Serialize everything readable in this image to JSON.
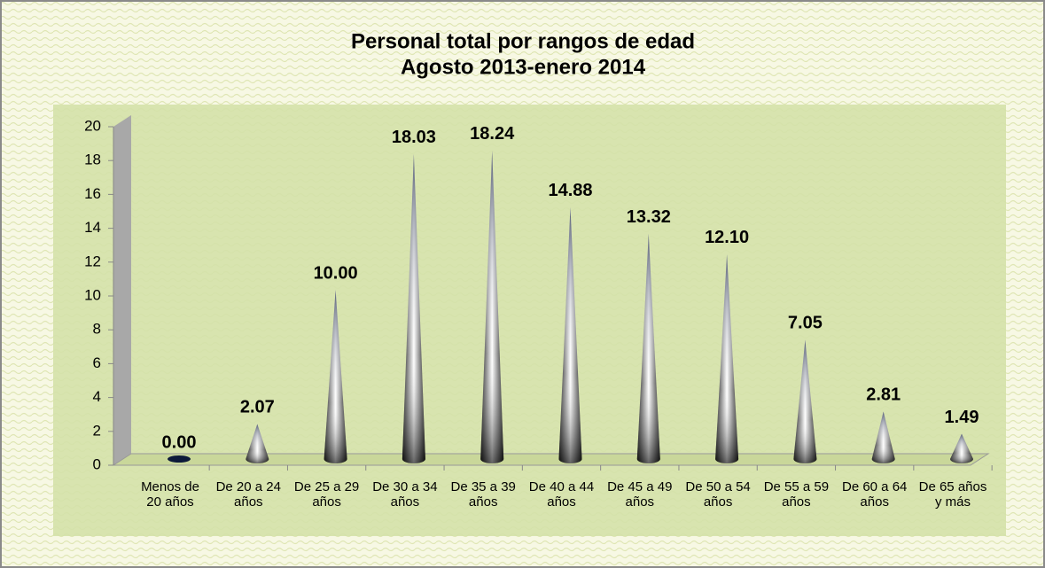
{
  "chart_data": {
    "type": "cone",
    "title": "Personal total por rangos de edad",
    "subtitle": "Agosto 2013-enero 2014",
    "categories": [
      "Menos de 20 años",
      "De 20 a 24 años",
      "De 25 a 29 años",
      "De 30 a 34 años",
      "De 35 a 39 años",
      "De 40 a 44 años",
      "De 45 a 49 años",
      "De 50 a 54 años",
      "De 55 a 59 años",
      "De 60 a 64 años",
      "De 65 años y más"
    ],
    "values": [
      0,
      2.07,
      10,
      18.03,
      18.24,
      14.88,
      13.32,
      12.1,
      7.05,
      2.81,
      1.49
    ],
    "value_labels": [
      "0.00",
      "2.07",
      "10.00",
      "18.03",
      "18.24",
      "14.88",
      "13.32",
      "12.10",
      "7.05",
      "2.81",
      "1.49"
    ],
    "ylim": [
      0,
      20
    ],
    "yticks": [
      0,
      2,
      4,
      6,
      8,
      10,
      12,
      14,
      16,
      18,
      20
    ]
  }
}
